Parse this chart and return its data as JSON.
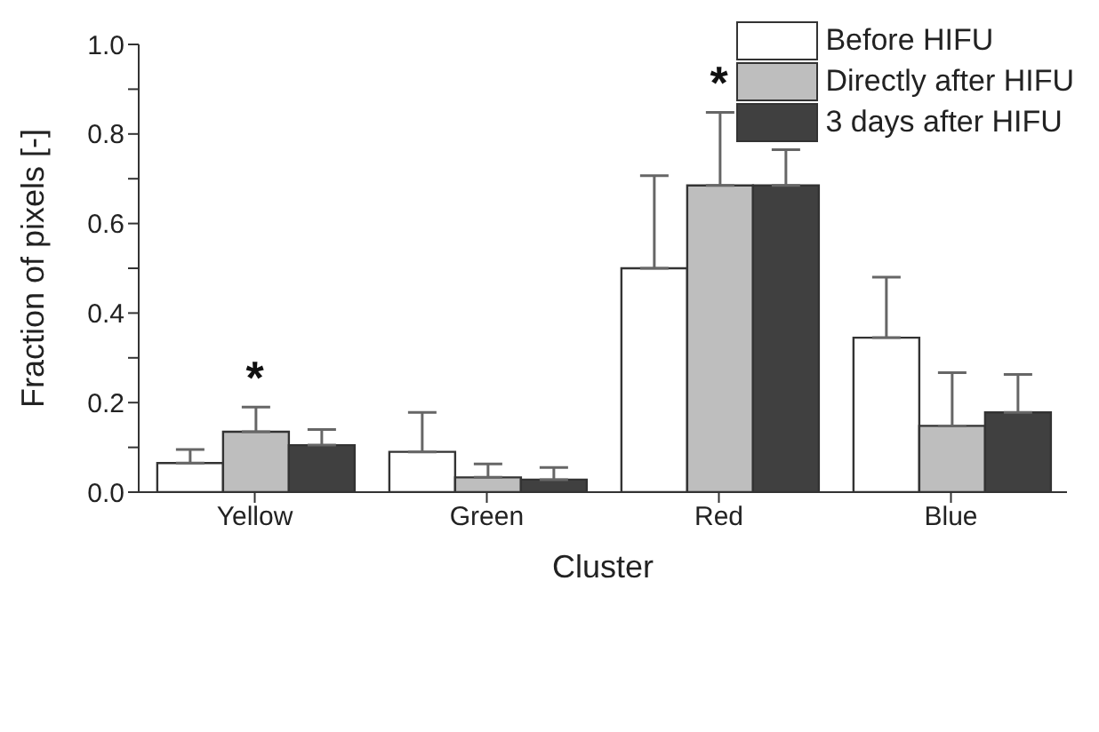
{
  "chart_data": {
    "type": "bar",
    "xlabel": "Cluster",
    "ylabel": "Fraction of pixels [-]",
    "categories": [
      "Yellow",
      "Green",
      "Red",
      "Blue"
    ],
    "series": [
      {
        "name": "Before HIFU",
        "color": "#ffffff",
        "values": [
          0.065,
          0.09,
          0.5,
          0.345
        ],
        "errors": [
          [
            0.065,
            0.095
          ],
          [
            0.09,
            0.178
          ],
          [
            0.5,
            0.707
          ],
          [
            0.345,
            0.48
          ]
        ]
      },
      {
        "name": "Directly after HIFU",
        "color": "#bebebe",
        "values": [
          0.135,
          0.033,
          0.685,
          0.148
        ],
        "errors": [
          [
            0.135,
            0.19
          ],
          [
            0.033,
            0.063
          ],
          [
            0.685,
            0.848
          ],
          [
            0.148,
            0.267
          ]
        ]
      },
      {
        "name": "3 days after HIFU",
        "color": "#404040",
        "values": [
          0.105,
          0.028,
          0.685,
          0.178
        ],
        "errors": [
          [
            0.105,
            0.14
          ],
          [
            0.028,
            0.055
          ],
          [
            0.685,
            0.765
          ],
          [
            0.178,
            0.263
          ]
        ]
      }
    ],
    "ylim": [
      0,
      1
    ],
    "yticks": [
      {
        "value": 0,
        "label": "0.0"
      },
      {
        "value": 0.1,
        "label": null
      },
      {
        "value": 0.2,
        "label": "0.2"
      },
      {
        "value": 0.3,
        "label": null
      },
      {
        "value": 0.4,
        "label": "0.4"
      },
      {
        "value": 0.5,
        "label": null
      },
      {
        "value": 0.6,
        "label": "0.6"
      },
      {
        "value": 0.7,
        "label": null
      },
      {
        "value": 0.8,
        "label": "0.8"
      },
      {
        "value": 0.9,
        "label": null
      },
      {
        "value": 1,
        "label": "1.0"
      }
    ],
    "annotations": [
      {
        "text": "*",
        "x": "Yellow",
        "y": 0.2
      },
      {
        "text": "*",
        "x": "Red",
        "y": 0.86
      }
    ],
    "legend": "top right",
    "grid": false
  }
}
